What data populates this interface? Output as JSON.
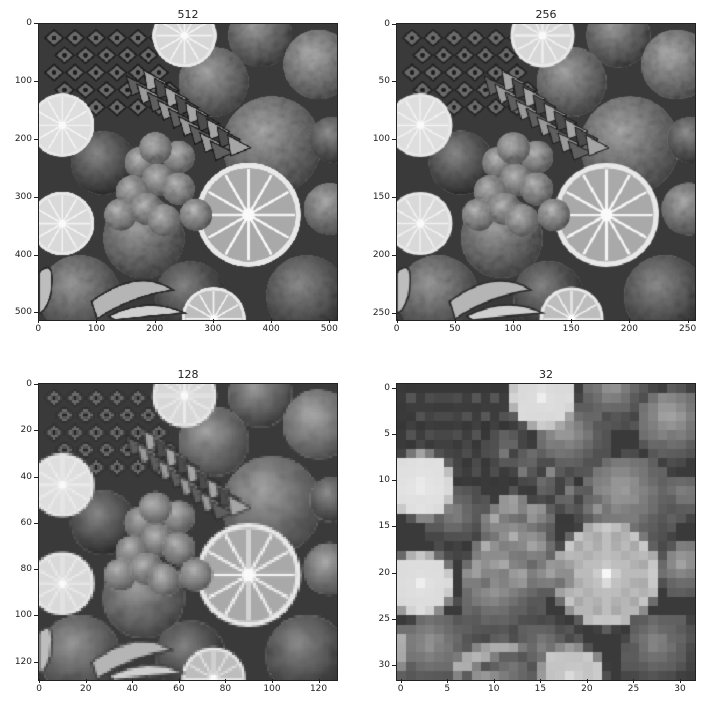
{
  "panels": [
    {
      "key": "p512",
      "title": "512",
      "pixels": 512,
      "xticks": [
        "0",
        "100",
        "200",
        "300",
        "400",
        "500"
      ],
      "xtick_values": [
        0,
        100,
        200,
        300,
        400,
        500
      ],
      "yticks": [
        "0",
        "100",
        "200",
        "300",
        "400",
        "500"
      ],
      "ytick_values": [
        0,
        100,
        200,
        300,
        400,
        500
      ]
    },
    {
      "key": "p256",
      "title": "256",
      "pixels": 256,
      "xticks": [
        "0",
        "50",
        "100",
        "150",
        "200",
        "250"
      ],
      "xtick_values": [
        0,
        50,
        100,
        150,
        200,
        250
      ],
      "yticks": [
        "0",
        "50",
        "100",
        "150",
        "200",
        "250"
      ],
      "ytick_values": [
        0,
        50,
        100,
        150,
        200,
        250
      ]
    },
    {
      "key": "p128",
      "title": "128",
      "pixels": 128,
      "xticks": [
        "0",
        "20",
        "40",
        "60",
        "80",
        "100",
        "120"
      ],
      "xtick_values": [
        0,
        20,
        40,
        60,
        80,
        100,
        120
      ],
      "yticks": [
        "0",
        "20",
        "40",
        "60",
        "80",
        "100",
        "120"
      ],
      "ytick_values": [
        0,
        20,
        40,
        60,
        80,
        100,
        120
      ]
    },
    {
      "key": "p32",
      "title": "32",
      "pixels": 32,
      "xticks": [
        "0",
        "5",
        "10",
        "15",
        "20",
        "25",
        "30"
      ],
      "xtick_values": [
        0,
        5,
        10,
        15,
        20,
        25,
        30
      ],
      "yticks": [
        "0",
        "5",
        "10",
        "15",
        "20",
        "25",
        "30"
      ],
      "ytick_values": [
        0,
        5,
        10,
        15,
        20,
        25,
        30
      ]
    }
  ],
  "image_description_colors": {
    "background": "#ffffff",
    "axis": "#222222"
  }
}
